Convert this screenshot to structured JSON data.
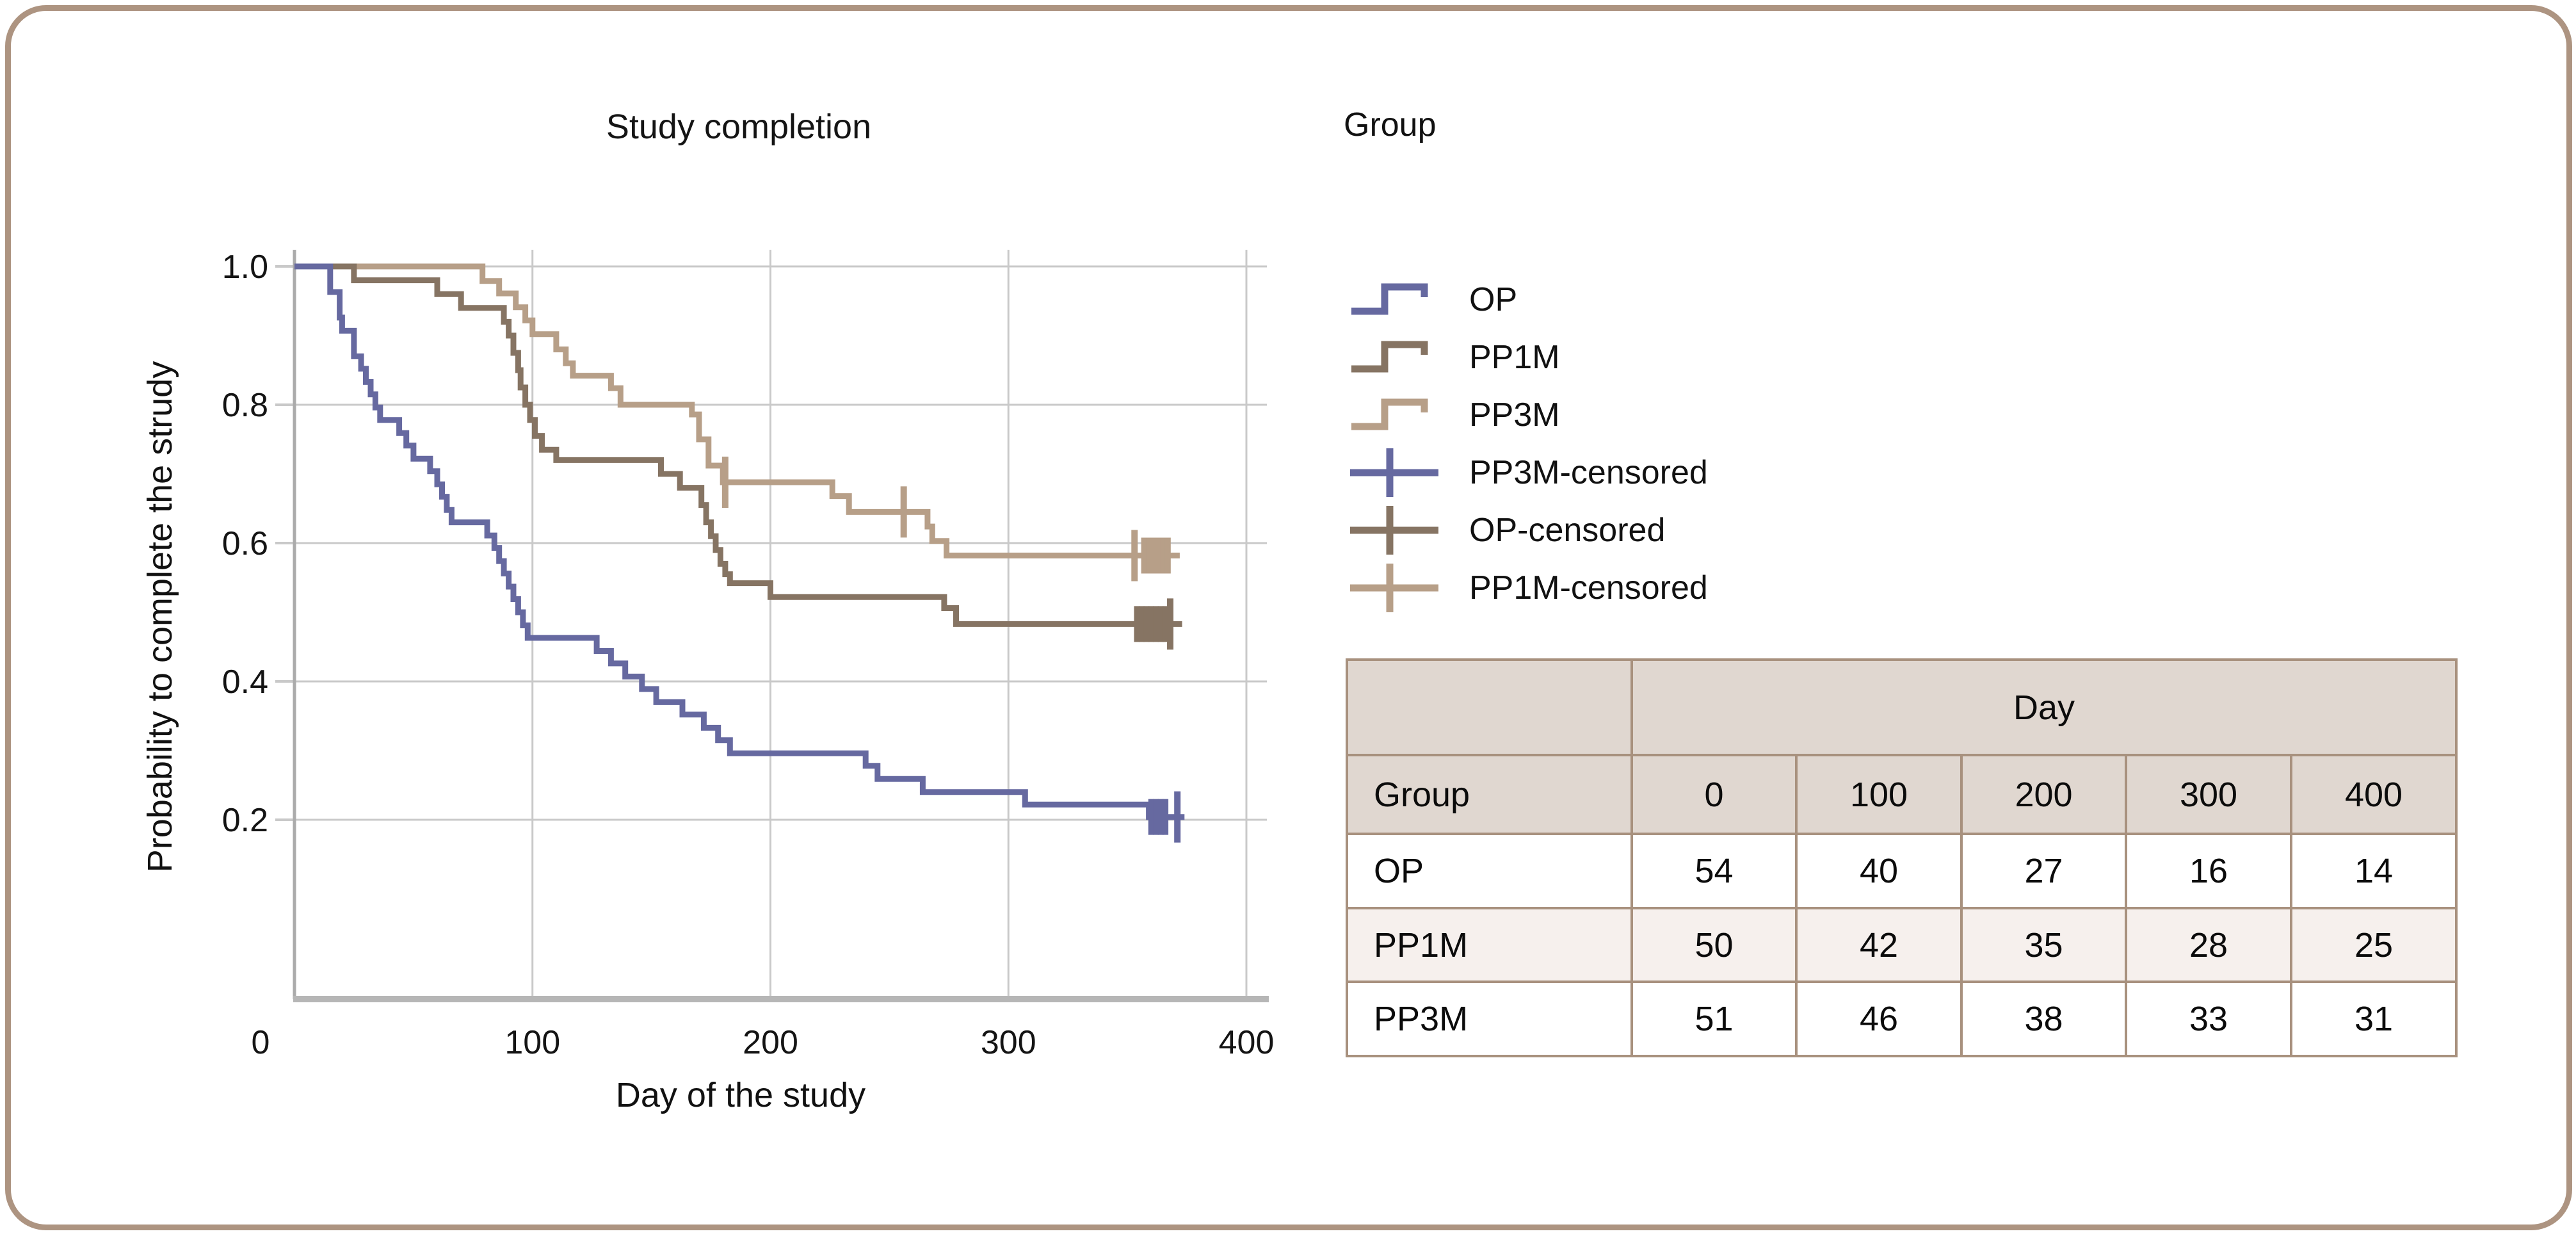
{
  "chart_data": [
    {
      "type": "line",
      "subtype": "kaplan-meier-step",
      "title": "Study completion",
      "xlabel": "Day of the study",
      "ylabel": "Probability to complete the strudy",
      "xlim": [
        0,
        400
      ],
      "ylim": [
        0,
        1.0
      ],
      "x_ticks": [
        0,
        100,
        200,
        300,
        400
      ],
      "x_tick_labels": [
        "0",
        "100",
        "200",
        "300",
        "400"
      ],
      "y_ticks": [
        1.0,
        0.8,
        0.6,
        0.4,
        0.2
      ],
      "y_tick_labels": [
        "1.0",
        "0.8",
        "0.6",
        "0.4",
        "0.2"
      ],
      "grid": true,
      "legend_position": "right",
      "colors": {
        "grid": "#C9C9C9",
        "spine": "#ABABAB",
        "bottom_spine": "#B6B6B6"
      },
      "series": [
        {
          "name": "PP3M",
          "color": "#B79F88",
          "points": [
            [
              0,
              1
            ],
            [
              79,
              1
            ],
            [
              79,
              0.979
            ],
            [
              86,
              0.979
            ],
            [
              86,
              0.961
            ],
            [
              93,
              0.961
            ],
            [
              93,
              0.941
            ],
            [
              97,
              0.941
            ],
            [
              97,
              0.922
            ],
            [
              100,
              0.922
            ],
            [
              100,
              0.902
            ],
            [
              110,
              0.902
            ],
            [
              110,
              0.88
            ],
            [
              114,
              0.88
            ],
            [
              114,
              0.86
            ],
            [
              117,
              0.86
            ],
            [
              117,
              0.842
            ],
            [
              133,
              0.842
            ],
            [
              133,
              0.824
            ],
            [
              137,
              0.824
            ],
            [
              137,
              0.8
            ],
            [
              167,
              0.8
            ],
            [
              167,
              0.786
            ],
            [
              170,
              0.786
            ],
            [
              170,
              0.75
            ],
            [
              174,
              0.75
            ],
            [
              174,
              0.712
            ],
            [
              180,
              0.712
            ],
            [
              180,
              0.688
            ],
            [
              226,
              0.688
            ],
            [
              226,
              0.668
            ],
            [
              233,
              0.668
            ],
            [
              233,
              0.645
            ],
            [
              266,
              0.645
            ],
            [
              266,
              0.624
            ],
            [
              268,
              0.624
            ],
            [
              268,
              0.603
            ],
            [
              274,
              0.603
            ],
            [
              274,
              0.582
            ],
            [
              372,
              0.582
            ]
          ],
          "censored": [
            [
              181,
              0.688,
              1
            ],
            [
              256,
              0.645,
              1
            ],
            [
              353,
              0.582,
              1
            ],
            [
              357,
              0.582,
              0
            ],
            [
              359,
              0.582,
              0
            ],
            [
              361,
              0.582,
              0
            ],
            [
              363,
              0.582,
              0
            ],
            [
              365,
              0.582,
              0
            ],
            [
              367,
              0.582,
              0
            ]
          ]
        },
        {
          "name": "PP1M",
          "color": "#867463",
          "points": [
            [
              0,
              1
            ],
            [
              25,
              1
            ],
            [
              25,
              0.98
            ],
            [
              60,
              0.98
            ],
            [
              60,
              0.96
            ],
            [
              70,
              0.96
            ],
            [
              70,
              0.94
            ],
            [
              88,
              0.94
            ],
            [
              88,
              0.92
            ],
            [
              90,
              0.92
            ],
            [
              90,
              0.9
            ],
            [
              92,
              0.9
            ],
            [
              92,
              0.875
            ],
            [
              94,
              0.875
            ],
            [
              94,
              0.85
            ],
            [
              95,
              0.85
            ],
            [
              95,
              0.825
            ],
            [
              97,
              0.825
            ],
            [
              97,
              0.8
            ],
            [
              99,
              0.8
            ],
            [
              99,
              0.778
            ],
            [
              101,
              0.778
            ],
            [
              101,
              0.755
            ],
            [
              104,
              0.755
            ],
            [
              104,
              0.735
            ],
            [
              110,
              0.735
            ],
            [
              110,
              0.72
            ],
            [
              154,
              0.72
            ],
            [
              154,
              0.7
            ],
            [
              162,
              0.7
            ],
            [
              162,
              0.68
            ],
            [
              171,
              0.68
            ],
            [
              171,
              0.655
            ],
            [
              173,
              0.655
            ],
            [
              173,
              0.63
            ],
            [
              175,
              0.63
            ],
            [
              175,
              0.61
            ],
            [
              177,
              0.61
            ],
            [
              177,
              0.59
            ],
            [
              179,
              0.59
            ],
            [
              179,
              0.57
            ],
            [
              181,
              0.57
            ],
            [
              181,
              0.555
            ],
            [
              183,
              0.555
            ],
            [
              183,
              0.542
            ],
            [
              200,
              0.542
            ],
            [
              200,
              0.522
            ],
            [
              273,
              0.522
            ],
            [
              273,
              0.506
            ],
            [
              278,
              0.506
            ],
            [
              278,
              0.483
            ],
            [
              373,
              0.483
            ]
          ],
          "censored": [
            [
              354,
              0.483,
              0
            ],
            [
              356,
              0.483,
              0
            ],
            [
              358,
              0.483,
              0
            ],
            [
              360,
              0.483,
              0
            ],
            [
              362,
              0.483,
              0
            ],
            [
              364,
              0.483,
              0
            ],
            [
              366,
              0.483,
              0
            ],
            [
              368,
              0.483,
              1
            ]
          ]
        },
        {
          "name": "OP",
          "color": "#6669A0",
          "points": [
            [
              0,
              1
            ],
            [
              15,
              1
            ],
            [
              15,
              0.963
            ],
            [
              19,
              0.963
            ],
            [
              19,
              0.926
            ],
            [
              20,
              0.926
            ],
            [
              20,
              0.907
            ],
            [
              25,
              0.907
            ],
            [
              25,
              0.87
            ],
            [
              28,
              0.87
            ],
            [
              28,
              0.852
            ],
            [
              30,
              0.852
            ],
            [
              30,
              0.833
            ],
            [
              32,
              0.833
            ],
            [
              32,
              0.815
            ],
            [
              34,
              0.815
            ],
            [
              34,
              0.796
            ],
            [
              36,
              0.796
            ],
            [
              36,
              0.778
            ],
            [
              44,
              0.778
            ],
            [
              44,
              0.759
            ],
            [
              47,
              0.759
            ],
            [
              47,
              0.741
            ],
            [
              50,
              0.741
            ],
            [
              50,
              0.722
            ],
            [
              57,
              0.722
            ],
            [
              57,
              0.704
            ],
            [
              60,
              0.704
            ],
            [
              60,
              0.685
            ],
            [
              62,
              0.685
            ],
            [
              62,
              0.667
            ],
            [
              64,
              0.667
            ],
            [
              64,
              0.648
            ],
            [
              66,
              0.648
            ],
            [
              66,
              0.63
            ],
            [
              81,
              0.63
            ],
            [
              81,
              0.611
            ],
            [
              84,
              0.611
            ],
            [
              84,
              0.593
            ],
            [
              86,
              0.593
            ],
            [
              86,
              0.574
            ],
            [
              88,
              0.574
            ],
            [
              88,
              0.556
            ],
            [
              90,
              0.556
            ],
            [
              90,
              0.537
            ],
            [
              92,
              0.537
            ],
            [
              92,
              0.519
            ],
            [
              94,
              0.519
            ],
            [
              94,
              0.5
            ],
            [
              96,
              0.5
            ],
            [
              96,
              0.481
            ],
            [
              98,
              0.481
            ],
            [
              98,
              0.463
            ],
            [
              127,
              0.463
            ],
            [
              127,
              0.444
            ],
            [
              133,
              0.444
            ],
            [
              133,
              0.426
            ],
            [
              139,
              0.426
            ],
            [
              139,
              0.407
            ],
            [
              146,
              0.407
            ],
            [
              146,
              0.389
            ],
            [
              152,
              0.389
            ],
            [
              152,
              0.37
            ],
            [
              163,
              0.37
            ],
            [
              163,
              0.352
            ],
            [
              172,
              0.352
            ],
            [
              172,
              0.333
            ],
            [
              178,
              0.333
            ],
            [
              178,
              0.315
            ],
            [
              183,
              0.315
            ],
            [
              183,
              0.296
            ],
            [
              240,
              0.296
            ],
            [
              240,
              0.278
            ],
            [
              245,
              0.278
            ],
            [
              245,
              0.259
            ],
            [
              264,
              0.259
            ],
            [
              264,
              0.24
            ],
            [
              307,
              0.24
            ],
            [
              307,
              0.222
            ],
            [
              359,
              0.222
            ],
            [
              359,
              0.204
            ],
            [
              374,
              0.204
            ]
          ],
          "censored": [
            [
              360,
              0.204,
              0
            ],
            [
              362,
              0.204,
              0
            ],
            [
              364,
              0.204,
              0
            ],
            [
              366,
              0.204,
              0
            ],
            [
              371,
              0.204,
              1
            ]
          ]
        }
      ]
    },
    {
      "type": "table",
      "day_header": "Day",
      "columns": [
        "Group",
        "0",
        "100",
        "200",
        "300",
        "400"
      ],
      "rows": [
        {
          "label": "OP",
          "values": [
            "54",
            "40",
            "27",
            "16",
            "14"
          ],
          "alt": false
        },
        {
          "label": "PP1M",
          "values": [
            "50",
            "42",
            "35",
            "28",
            "25"
          ],
          "alt": true
        },
        {
          "label": "PP3M",
          "values": [
            "51",
            "46",
            "38",
            "33",
            "31"
          ],
          "alt": false
        }
      ]
    }
  ],
  "legend": {
    "title": "Group",
    "items": [
      {
        "label": "OP",
        "marker": "step",
        "color": "#6669A0"
      },
      {
        "label": "PP1M",
        "marker": "step",
        "color": "#867463"
      },
      {
        "label": "PP3M",
        "marker": "step",
        "color": "#B79F88"
      },
      {
        "label": "PP3M-censored",
        "marker": "plus",
        "color": "#6669A0"
      },
      {
        "label": "OP-censored",
        "marker": "plus",
        "color": "#867463"
      },
      {
        "label": "PP1M-censored",
        "marker": "plus",
        "color": "#B79F88"
      }
    ]
  },
  "style": {
    "table_border": "#A8917E",
    "table_header_bg": "#E0D7D0",
    "table_alt_bg": "#F6F0ED",
    "frame_border": "#AD9481"
  }
}
